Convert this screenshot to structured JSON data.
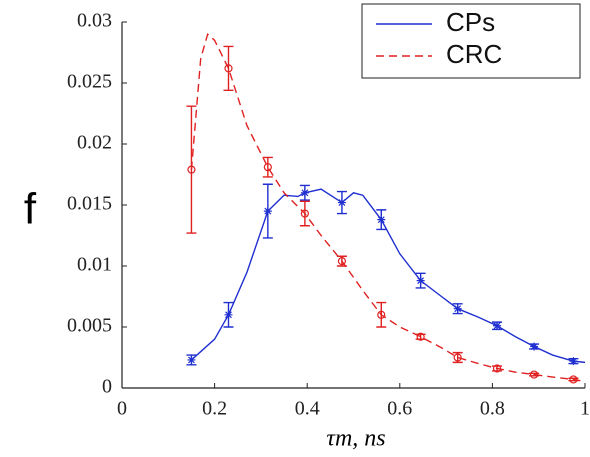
{
  "chart_data": {
    "type": "errorbar-line",
    "x_label": "τm, ns",
    "y_label": "f",
    "xlim": [
      0,
      1
    ],
    "xticks": [
      0,
      0.2,
      0.4,
      0.6,
      0.8,
      1
    ],
    "ylim": [
      0,
      0.03
    ],
    "yticks": [
      0,
      0.005,
      0.01,
      0.015,
      0.02,
      0.025,
      0.03
    ],
    "legend": "upper right",
    "series": [
      {
        "name": "CPs",
        "color": "#1f2fd0",
        "line_style": "solid",
        "marker": "star",
        "x": [
          0.15,
          0.23,
          0.315,
          0.395,
          0.475,
          0.56,
          0.645,
          0.725,
          0.81,
          0.89,
          0.975
        ],
        "values": [
          0.0023,
          0.006,
          0.0145,
          0.016,
          0.0152,
          0.0138,
          0.0088,
          0.0065,
          0.0051,
          0.0034,
          0.0022
        ],
        "errors": [
          0.0004,
          0.001,
          0.0022,
          0.0006,
          0.0009,
          0.0008,
          0.0006,
          0.0004,
          0.0003,
          0.0002,
          0.0002
        ],
        "curve_x": [
          0.15,
          0.2,
          0.23,
          0.27,
          0.315,
          0.35,
          0.38,
          0.395,
          0.43,
          0.475,
          0.5,
          0.52,
          0.56,
          0.6,
          0.645,
          0.69,
          0.725,
          0.77,
          0.81,
          0.85,
          0.89,
          0.93,
          0.975,
          1.0
        ],
        "curve_values": [
          0.0023,
          0.004,
          0.006,
          0.0095,
          0.0145,
          0.0158,
          0.0157,
          0.016,
          0.0163,
          0.0152,
          0.016,
          0.0158,
          0.0138,
          0.011,
          0.0088,
          0.0075,
          0.0065,
          0.0058,
          0.0051,
          0.0042,
          0.0034,
          0.0027,
          0.0022,
          0.0021
        ]
      },
      {
        "name": "CRC",
        "color": "#e02020",
        "line_style": "dashed",
        "marker": "circle",
        "x": [
          0.15,
          0.23,
          0.315,
          0.395,
          0.475,
          0.56,
          0.645,
          0.725,
          0.81,
          0.89,
          0.975
        ],
        "values": [
          0.0179,
          0.0262,
          0.0181,
          0.0143,
          0.0104,
          0.006,
          0.0042,
          0.0025,
          0.0016,
          0.0011,
          0.0007
        ],
        "errors": [
          0.0052,
          0.0018,
          0.0008,
          0.001,
          0.0004,
          0.001,
          0.0002,
          0.0004,
          0.0002,
          0.0001,
          0.0001
        ],
        "curve_x": [
          0.15,
          0.17,
          0.185,
          0.2,
          0.23,
          0.27,
          0.315,
          0.35,
          0.395,
          0.43,
          0.475,
          0.52,
          0.56,
          0.6,
          0.645,
          0.69,
          0.725,
          0.77,
          0.81,
          0.85,
          0.89,
          0.93,
          0.975,
          0.99
        ],
        "curve_values": [
          0.0179,
          0.027,
          0.029,
          0.0285,
          0.0262,
          0.0215,
          0.0181,
          0.016,
          0.0143,
          0.0125,
          0.0104,
          0.008,
          0.006,
          0.005,
          0.0042,
          0.0033,
          0.0025,
          0.002,
          0.0016,
          0.0013,
          0.0011,
          0.0009,
          0.0007,
          0.0006
        ]
      }
    ]
  }
}
